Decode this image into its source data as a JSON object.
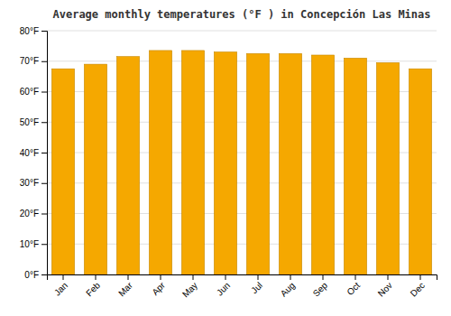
{
  "chart_data": {
    "type": "bar",
    "title": "Average monthly temperatures (°F ) in Concepción Las Minas",
    "categories": [
      "Jan",
      "Feb",
      "Mar",
      "Apr",
      "May",
      "Jun",
      "Jul",
      "Aug",
      "Sep",
      "Oct",
      "Nov",
      "Dec"
    ],
    "values": [
      67.5,
      69.0,
      71.5,
      73.5,
      73.5,
      73.0,
      72.5,
      72.5,
      72.0,
      71.0,
      69.5,
      67.5
    ],
    "color": "#F5A800",
    "ylim": [
      0,
      80
    ],
    "yticks": [
      {
        "value": 0,
        "label": "0°F"
      },
      {
        "value": 10,
        "label": "10°F"
      },
      {
        "value": 20,
        "label": "20°F"
      },
      {
        "value": 30,
        "label": "30°F"
      },
      {
        "value": 40,
        "label": "40°F"
      },
      {
        "value": 50,
        "label": "50°F"
      },
      {
        "value": 60,
        "label": "60°F"
      },
      {
        "value": 70,
        "label": "70°F"
      },
      {
        "value": 80,
        "label": "80°F"
      }
    ],
    "grid": true
  }
}
